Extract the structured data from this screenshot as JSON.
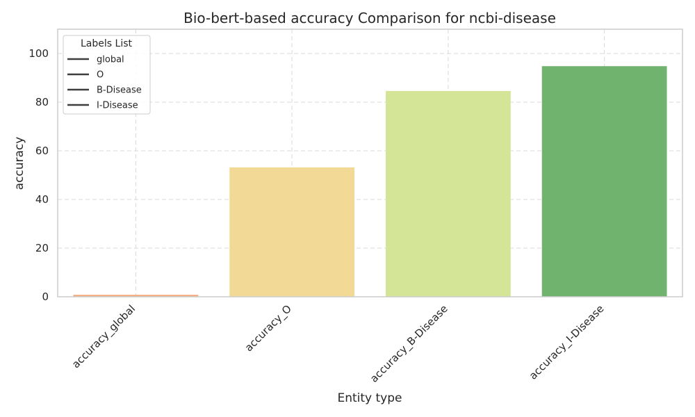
{
  "chart_data": {
    "type": "bar",
    "title": "Bio-bert-based accuracy Comparison for ncbi-disease",
    "xlabel": "Entity type",
    "ylabel": "accuracy",
    "categories": [
      "accuracy_global",
      "accuracy_O",
      "accuracy_B-Disease",
      "accuracy_I-Disease"
    ],
    "values": [
      0.8,
      53.2,
      84.6,
      94.8
    ],
    "colors": [
      "#f4a97a",
      "#f2da96",
      "#d4e597",
      "#70b36f"
    ],
    "ylim": [
      0,
      110
    ],
    "yticks": [
      0,
      20,
      40,
      60,
      80,
      100
    ],
    "grid": true,
    "legend": {
      "title": "Labels List",
      "position": "top-left",
      "entries": [
        "global",
        "O",
        "B-Disease",
        "I-Disease"
      ],
      "line_color": "#3d3d3d"
    }
  }
}
